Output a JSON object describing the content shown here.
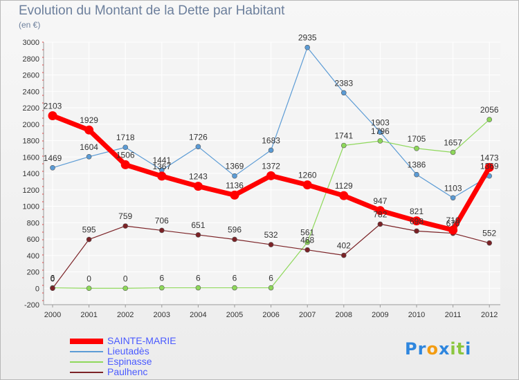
{
  "page": {
    "title": "Evolution du Montant de la Dette par Habitant",
    "unit": "(en €)",
    "logo_letters": [
      {
        "ch": "P",
        "color": "#2e86de"
      },
      {
        "ch": "r",
        "color": "#2e86de"
      },
      {
        "ch": "o",
        "color": "#f39c12"
      },
      {
        "ch": "x",
        "color": "#2e86de"
      },
      {
        "ch": "i",
        "color": "#8cc63f"
      },
      {
        "ch": "t",
        "color": "#8cc63f"
      },
      {
        "ch": "i",
        "color": "#2e86de"
      }
    ]
  },
  "chart_data": {
    "type": "line",
    "title": "Evolution du Montant de la Dette par Habitant",
    "ylabel": "(en €)",
    "xlabel": "",
    "categories": [
      "2000",
      "2001",
      "2002",
      "2003",
      "2004",
      "2005",
      "2006",
      "2007",
      "2008",
      "2009",
      "2010",
      "2011",
      "2012"
    ],
    "ylim": [
      -200,
      3000
    ],
    "yticks": [
      -200,
      0,
      200,
      400,
      600,
      800,
      1000,
      1200,
      1400,
      1600,
      1800,
      2000,
      2200,
      2400,
      2600,
      2800,
      3000
    ],
    "grid": true,
    "legend_position": "bottom-left",
    "series": [
      {
        "name": "SAINTE-MARIE",
        "color": "#ff0000",
        "values": [
          2103,
          1929,
          1506,
          1367,
          1243,
          1136,
          1372,
          1260,
          1129,
          947,
          821,
          710,
          1473
        ]
      },
      {
        "name": "Lieutadès",
        "color": "#5b9bd5",
        "values": [
          1469,
          1604,
          1718,
          1441,
          1726,
          1369,
          1683,
          2935,
          2383,
          1903,
          1386,
          1103,
          1369
        ]
      },
      {
        "name": "Espinasse",
        "color": "#8ed85a",
        "values": [
          6,
          0,
          0,
          6,
          6,
          6,
          6,
          561,
          1741,
          1796,
          1705,
          1657,
          2056
        ]
      },
      {
        "name": "Paulhenc",
        "color": "#7b2226",
        "values": [
          0,
          595,
          759,
          706,
          651,
          596,
          532,
          468,
          402,
          782,
          698,
          670,
          552
        ]
      }
    ]
  }
}
